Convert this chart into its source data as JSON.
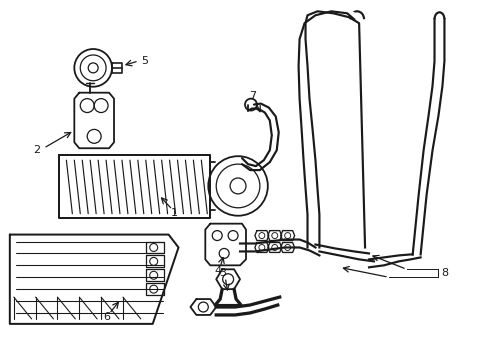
{
  "background_color": "#ffffff",
  "line_color": "#1a1a1a",
  "lw": 1.3,
  "fig_w": 4.89,
  "fig_h": 3.6,
  "dpi": 100
}
